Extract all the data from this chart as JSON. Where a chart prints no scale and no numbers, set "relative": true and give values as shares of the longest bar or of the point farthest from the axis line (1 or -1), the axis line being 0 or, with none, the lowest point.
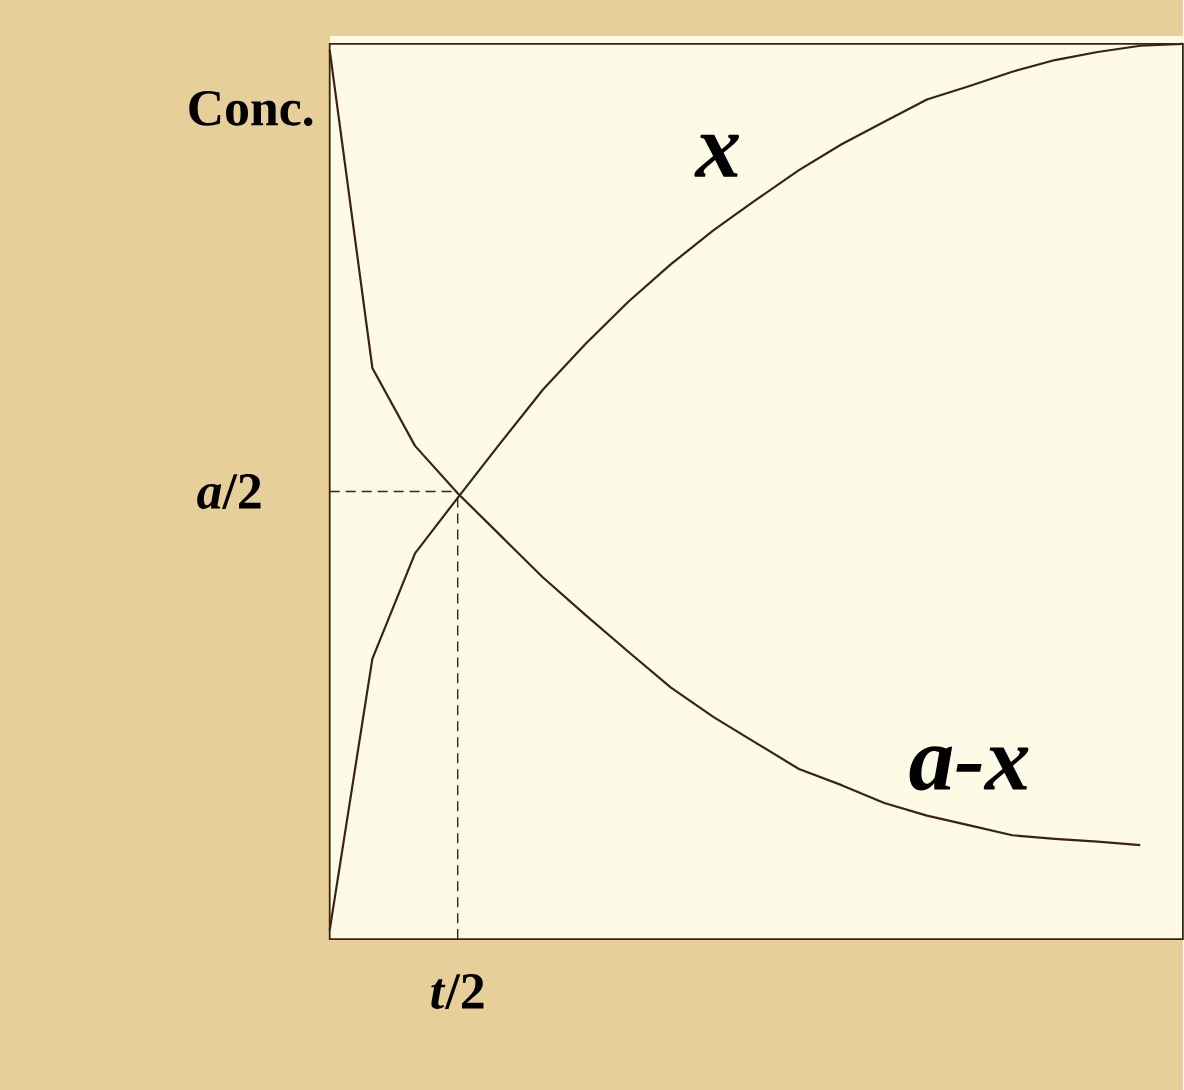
{
  "chart_data": {
    "type": "line",
    "relative": true,
    "ylabel": "Conc.",
    "annotations": [
      "*t*/2"
    ],
    "categories": [
      null,
      null,
      null,
      null,
      null,
      null,
      null,
      null,
      null,
      null,
      null,
      null,
      null,
      null,
      null,
      null,
      null,
      null,
      null,
      null,
      null
    ],
    "series": [
      {
        "name": "x",
        "color": "#3a2310",
        "values": [
          0.01,
          0.313,
          0.431,
          0.493,
          0.554,
          0.614,
          0.665,
          0.712,
          0.754,
          0.792,
          0.826,
          0.859,
          0.888,
          0.913,
          0.938,
          0.953,
          0.969,
          0.982,
          0.991,
          0.998,
          1.0
        ]
      },
      {
        "name": "a-x",
        "color": "#3a2310",
        "values": [
          0.993,
          0.638,
          0.551,
          0.498,
          0.451,
          0.404,
          0.362,
          0.321,
          0.281,
          0.248,
          0.219,
          0.19,
          0.172,
          0.152,
          0.138,
          0.127,
          0.116,
          0.112,
          0.109,
          0.105,
          null
        ]
      }
    ],
    "ref_lines": [
      {
        "axis": "y",
        "value": 0.5,
        "label": "*a*/2",
        "line_style": "dashed"
      }
    ]
  }
}
